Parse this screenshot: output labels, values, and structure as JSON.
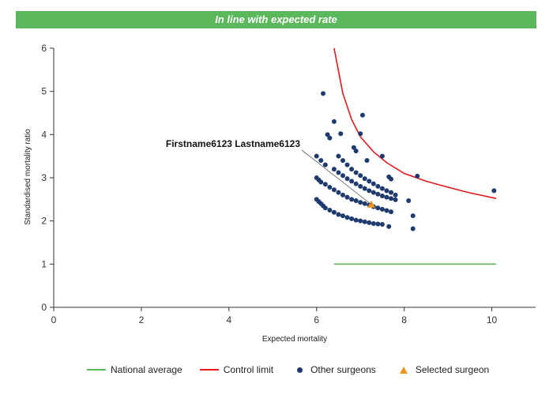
{
  "banner": {
    "text": "In line with expected rate",
    "color": "#5cb85c"
  },
  "chart_data": {
    "type": "scatter",
    "title": "",
    "xlabel": "Expected mortality",
    "ylabel": "Standardised mortality ratio",
    "xlim": [
      0,
      11
    ],
    "ylim": [
      0,
      6
    ],
    "x_ticks": [
      0,
      2,
      4,
      6,
      8,
      10
    ],
    "y_ticks": [
      0,
      1,
      2,
      3,
      4,
      5,
      6
    ],
    "grid": false,
    "legend_position": "bottom",
    "series": [
      {
        "name": "National average",
        "kind": "line",
        "color": "#5cb85c",
        "x": [
          6.4,
          10.1
        ],
        "y": [
          1.0,
          1.0
        ]
      },
      {
        "name": "Control limit",
        "kind": "line",
        "color": "#e31a1c",
        "x": [
          6.4,
          6.6,
          6.8,
          7.0,
          7.3,
          7.6,
          8.0,
          8.5,
          9.0,
          9.5,
          10.1
        ],
        "y": [
          6.0,
          4.95,
          4.35,
          3.95,
          3.6,
          3.35,
          3.1,
          2.92,
          2.78,
          2.65,
          2.52
        ]
      },
      {
        "name": "Other surgeons",
        "kind": "points",
        "color": "#1f3a6e",
        "x": [
          6.0,
          6.05,
          6.1,
          6.15,
          6.2,
          6.3,
          6.4,
          6.5,
          6.6,
          6.7,
          6.8,
          6.9,
          7.0,
          7.1,
          7.2,
          7.3,
          7.4,
          7.5,
          6.0,
          6.05,
          6.1,
          6.2,
          6.3,
          6.4,
          6.5,
          6.6,
          6.7,
          6.8,
          6.9,
          7.0,
          7.1,
          7.2,
          7.3,
          7.4,
          7.5,
          7.6,
          7.7,
          6.0,
          6.1,
          6.2,
          6.4,
          6.5,
          6.6,
          6.7,
          6.8,
          6.9,
          7.0,
          7.1,
          7.2,
          7.3,
          7.4,
          7.5,
          7.6,
          7.7,
          7.8,
          6.5,
          6.6,
          6.7,
          6.8,
          6.9,
          7.0,
          7.1,
          7.2,
          7.3,
          7.4,
          7.5,
          7.6,
          7.7,
          7.8,
          6.15,
          6.25,
          6.3,
          6.4,
          6.55,
          6.85,
          6.9,
          7.05,
          7.15,
          7.5,
          7.65,
          7.7,
          8.1,
          8.2,
          8.2,
          8.3,
          10.05,
          7.0,
          7.65
        ],
        "y": [
          2.5,
          2.45,
          2.4,
          2.35,
          2.3,
          2.25,
          2.2,
          2.15,
          2.12,
          2.08,
          2.05,
          2.02,
          2.0,
          1.98,
          1.96,
          1.94,
          1.93,
          1.92,
          3.0,
          2.95,
          2.9,
          2.85,
          2.78,
          2.72,
          2.66,
          2.6,
          2.55,
          2.5,
          2.47,
          2.43,
          2.4,
          2.37,
          2.33,
          2.3,
          2.27,
          2.24,
          2.21,
          3.5,
          3.4,
          3.3,
          3.2,
          3.12,
          3.05,
          2.98,
          2.92,
          2.86,
          2.8,
          2.75,
          2.7,
          2.66,
          2.62,
          2.58,
          2.55,
          2.52,
          2.49,
          3.5,
          3.4,
          3.3,
          3.2,
          3.12,
          3.05,
          2.98,
          2.92,
          2.86,
          2.8,
          2.75,
          2.7,
          2.66,
          2.6,
          4.95,
          4.0,
          3.92,
          4.3,
          4.02,
          3.7,
          3.62,
          4.45,
          3.4,
          3.5,
          3.02,
          2.97,
          2.47,
          2.12,
          1.82,
          3.04,
          2.7,
          4.02,
          1.87
        ]
      },
      {
        "name": "Selected surgeon",
        "kind": "points",
        "color": "#f0941e",
        "x": [
          7.25
        ],
        "y": [
          2.38
        ]
      }
    ],
    "annotations": [
      {
        "text": "Firstname6123 Lastname6123",
        "target_x": 7.25,
        "target_y": 2.38
      }
    ]
  }
}
